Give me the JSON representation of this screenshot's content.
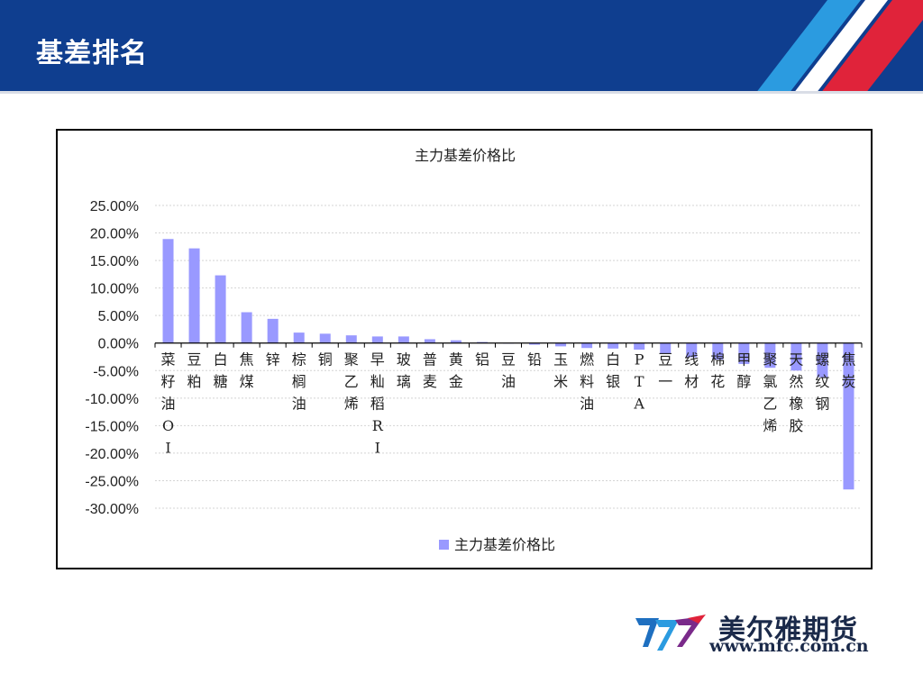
{
  "slide": {
    "title": "基差排名",
    "brand": {
      "name": "美尔雅期货",
      "url": "www.mfc.com.cn"
    }
  },
  "colors": {
    "header": "#0f3e8f",
    "bar": "#9999ff",
    "stripe_blue": "#2b9be0",
    "stripe_red": "#e0233a"
  },
  "chart_data": {
    "type": "bar",
    "title": "主力基差价格比",
    "legend": {
      "position": "bottom",
      "label": "主力基差价格比"
    },
    "ylim": [
      -30,
      25
    ],
    "yticks": [
      25,
      20,
      15,
      10,
      5,
      0,
      -5,
      -10,
      -15,
      -20,
      -25,
      -30
    ],
    "ytick_labels": [
      "25.00%",
      "20.00%",
      "15.00%",
      "10.00%",
      "5.00%",
      "0.00%",
      "-5.00%",
      "-10.00%",
      "-15.00%",
      "-20.00%",
      "-25.00%",
      "-30.00%"
    ],
    "grid": true,
    "categories": [
      "菜籽油OI",
      "豆粕",
      "白糖",
      "焦煤",
      "锌",
      "棕榈油",
      "铜",
      "聚乙烯",
      "早籼稻RI",
      "玻璃",
      "普麦",
      "黄金",
      "铝",
      "豆油",
      "铅",
      "玉米",
      "燃料油",
      "白银",
      "PTA",
      "豆一",
      "线材",
      "棉花",
      "甲醇",
      "聚氯乙烯",
      "天然橡胶",
      "螺纹钢",
      "焦炭"
    ],
    "series": [
      {
        "values": [
          18.9,
          17.2,
          12.3,
          5.6,
          4.4,
          1.9,
          1.7,
          1.4,
          1.2,
          1.2,
          0.7,
          0.5,
          0.2,
          0.0,
          -0.3,
          -0.6,
          -0.9,
          -1.0,
          -1.2,
          -2.0,
          -2.6,
          -3.0,
          -3.8,
          -4.5,
          -5.0,
          -6.2,
          -26.6
        ]
      }
    ]
  }
}
